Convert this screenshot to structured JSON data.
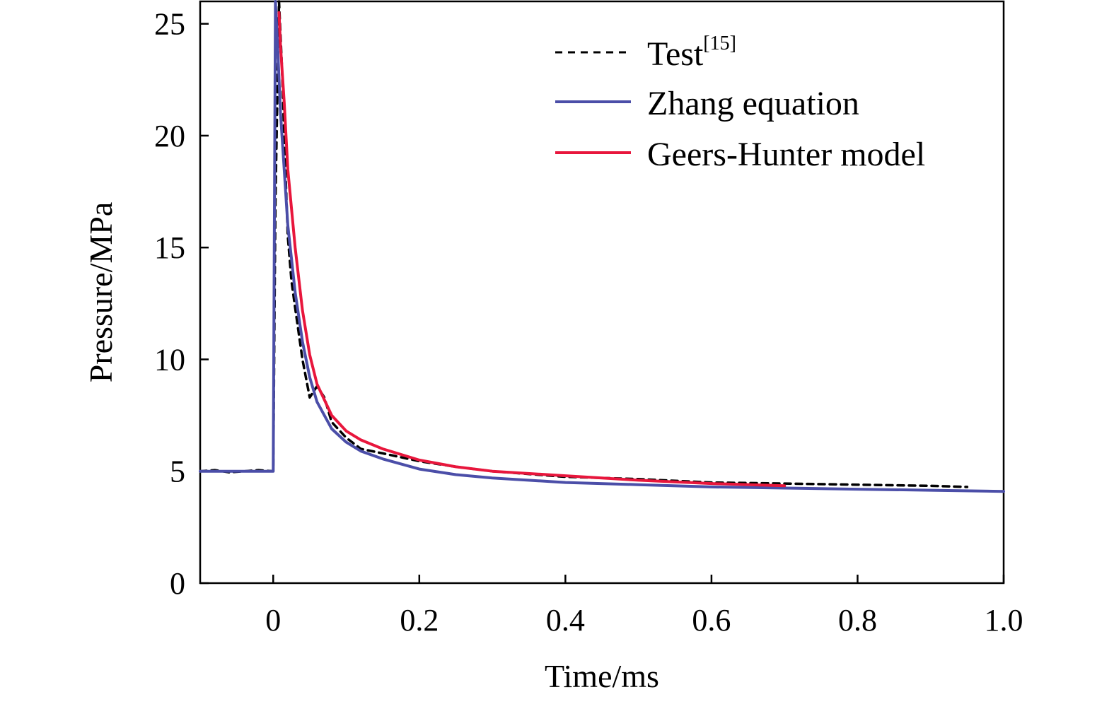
{
  "chart_data": {
    "type": "line",
    "title": "",
    "xlabel": "Time/ms",
    "ylabel": "Pressure/MPa",
    "xlim": [
      -0.1,
      1.0
    ],
    "ylim": [
      0,
      26
    ],
    "x_ticks": [
      0,
      0.2,
      0.4,
      0.6,
      0.8,
      1.0
    ],
    "x_tick_labels": [
      "0",
      "0.2",
      "0.4",
      "0.6",
      "0.8",
      "1.0"
    ],
    "y_ticks": [
      0,
      5,
      10,
      15,
      20,
      25
    ],
    "y_tick_labels": [
      "0",
      "5",
      "10",
      "15",
      "20",
      "25"
    ],
    "grid": false,
    "legend_position": "top-right",
    "series": [
      {
        "name": "Test",
        "name_superscript": "[15]",
        "color": "#000000",
        "style": "dashed",
        "x": [
          -0.1,
          -0.08,
          -0.06,
          -0.04,
          -0.02,
          0.0,
          0.003,
          0.008,
          0.012,
          0.015,
          0.02,
          0.025,
          0.03,
          0.04,
          0.05,
          0.06,
          0.07,
          0.08,
          0.1,
          0.12,
          0.15,
          0.2,
          0.25,
          0.3,
          0.4,
          0.5,
          0.6,
          0.7,
          0.8,
          0.9,
          0.95
        ],
        "y": [
          5.0,
          5.05,
          4.95,
          5.0,
          5.05,
          5.0,
          17.0,
          26.0,
          23.0,
          20.0,
          15.5,
          13.5,
          12.3,
          10.0,
          8.3,
          8.8,
          8.3,
          7.2,
          6.5,
          6.0,
          5.8,
          5.45,
          5.2,
          5.0,
          4.75,
          4.65,
          4.5,
          4.45,
          4.4,
          4.35,
          4.3
        ]
      },
      {
        "name": "Zhang equation",
        "color": "#4b4ea8",
        "style": "solid",
        "x": [
          -0.1,
          -0.05,
          0.0,
          0.003,
          0.006,
          0.01,
          0.015,
          0.02,
          0.03,
          0.04,
          0.05,
          0.06,
          0.08,
          0.1,
          0.12,
          0.15,
          0.2,
          0.25,
          0.3,
          0.4,
          0.5,
          0.6,
          0.7,
          0.8,
          0.9,
          1.0
        ],
        "y": [
          5.0,
          5.0,
          5.0,
          26.0,
          24.0,
          21.0,
          18.5,
          16.0,
          13.0,
          10.8,
          9.2,
          8.1,
          6.9,
          6.3,
          5.9,
          5.55,
          5.1,
          4.85,
          4.7,
          4.5,
          4.4,
          4.3,
          4.25,
          4.2,
          4.15,
          4.1
        ]
      },
      {
        "name": "Geers-Hunter model",
        "color": "#e8163c",
        "style": "solid",
        "x": [
          0.008,
          0.01,
          0.015,
          0.02,
          0.03,
          0.04,
          0.05,
          0.06,
          0.08,
          0.1,
          0.12,
          0.15,
          0.2,
          0.25,
          0.3,
          0.4,
          0.5,
          0.6,
          0.7
        ],
        "y": [
          25.5,
          24.0,
          21.5,
          18.5,
          15.0,
          12.2,
          10.2,
          8.9,
          7.5,
          6.8,
          6.4,
          6.0,
          5.5,
          5.2,
          5.0,
          4.8,
          4.6,
          4.45,
          4.35
        ]
      }
    ]
  }
}
